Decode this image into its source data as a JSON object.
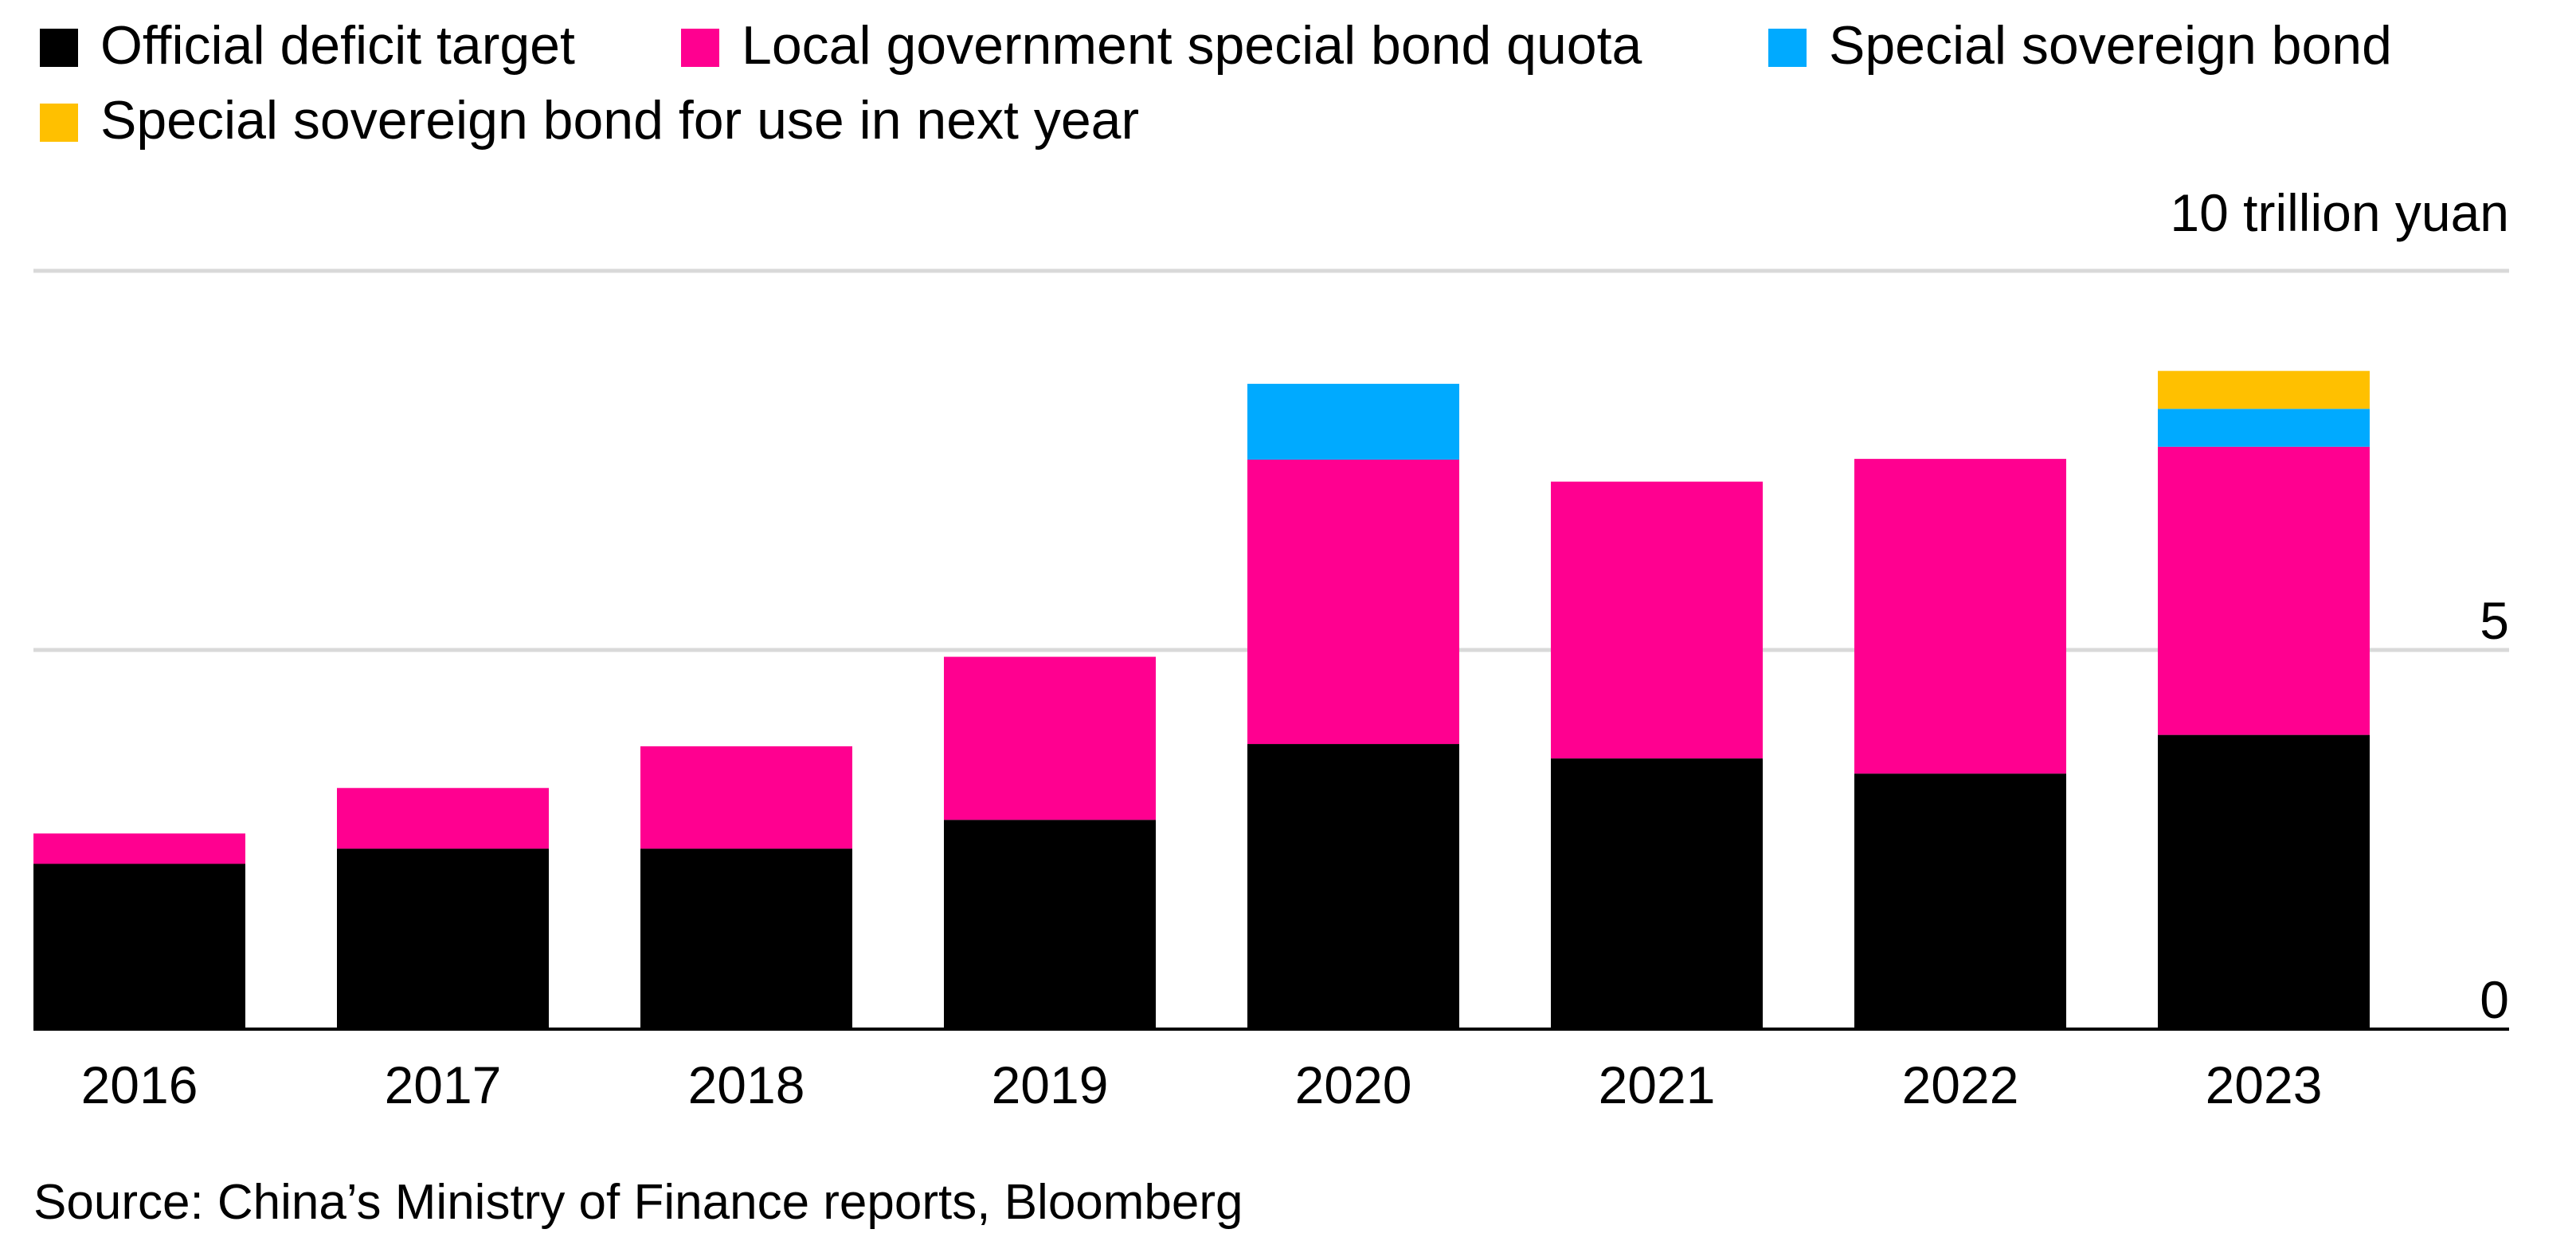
{
  "chart_data": {
    "type": "bar",
    "stacked": true,
    "categories": [
      "2016",
      "2017",
      "2018",
      "2019",
      "2020",
      "2021",
      "2022",
      "2023"
    ],
    "series": [
      {
        "name": "Official deficit target",
        "color": "#000000",
        "values": [
          2.18,
          2.38,
          2.38,
          2.76,
          3.76,
          3.57,
          3.37,
          3.88
        ]
      },
      {
        "name": "Local government special bond quota",
        "color": "#ff0090",
        "values": [
          0.4,
          0.8,
          1.35,
          2.15,
          3.75,
          3.65,
          4.15,
          3.8
        ]
      },
      {
        "name": "Special sovereign bond",
        "color": "#00aaff",
        "values": [
          0,
          0,
          0,
          0,
          1.0,
          0,
          0,
          0.5
        ]
      },
      {
        "name": "Special sovereign bond for use in next year",
        "color": "#ffc000",
        "values": [
          0,
          0,
          0,
          0,
          0,
          0,
          0,
          0.5
        ]
      }
    ],
    "title": "",
    "xlabel": "",
    "ylabel": "",
    "y_unit_label": "10 trillion yuan",
    "y_ticks": [
      {
        "value": 0,
        "label": "0"
      },
      {
        "value": 5,
        "label": "5"
      },
      {
        "value": 10,
        "label": "10"
      }
    ],
    "ylim": [
      0,
      10
    ],
    "grid": true,
    "legend_position": "top-left",
    "source": "Source: China’s Ministry of Finance reports, Bloomberg"
  }
}
